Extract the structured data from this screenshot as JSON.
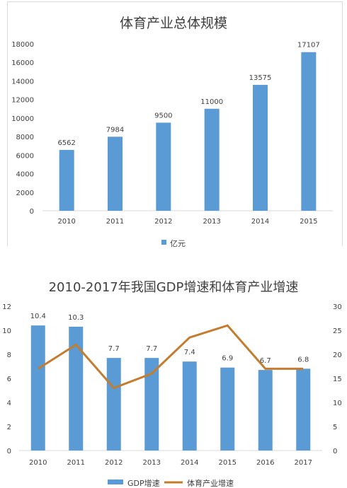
{
  "chart_data": [
    {
      "type": "bar",
      "title": "体育产业总体规模",
      "categories": [
        "2010",
        "2011",
        "2012",
        "2013",
        "2014",
        "2015"
      ],
      "series": [
        {
          "name": "亿元",
          "values": [
            6562,
            7984,
            9500,
            11000,
            13575,
            17107
          ],
          "color": "#5b9bd5"
        }
      ],
      "data_labels": [
        "6562",
        "7984",
        "9500",
        "11000",
        "13575",
        "17107"
      ],
      "y_ticks": [
        "0",
        "2000",
        "4000",
        "6000",
        "8000",
        "10000",
        "12000",
        "14000",
        "16000",
        "18000"
      ],
      "ylim": [
        0,
        18000
      ],
      "grid": false,
      "legend": "bottom"
    },
    {
      "type": "bar+line",
      "title": "2010-2017年我国GDP增速和体育产业增速",
      "categories": [
        "2010",
        "2011",
        "2012",
        "2013",
        "2014",
        "2015",
        "2016",
        "2017"
      ],
      "series": [
        {
          "name": "GDP增速",
          "type": "bar",
          "axis": "left",
          "values": [
            10.4,
            10.3,
            7.7,
            7.7,
            7.4,
            6.9,
            6.7,
            6.8
          ],
          "color": "#5b9bd5"
        },
        {
          "name": "体育产业增速",
          "type": "line",
          "axis": "right",
          "values": [
            17,
            22,
            13,
            16,
            23.5,
            26,
            17,
            17
          ],
          "color": "#c47c2e"
        }
      ],
      "data_labels": [
        "10.4",
        "10.3",
        "7.7",
        "7.7",
        "7.4",
        "6.9",
        "6.7",
        "6.8"
      ],
      "y_ticks_left": [
        "0",
        "2",
        "4",
        "6",
        "8",
        "10",
        "12"
      ],
      "y_ticks_right": [
        "0",
        "5",
        "10",
        "15",
        "20",
        "25",
        "30"
      ],
      "ylim_left": [
        0,
        12
      ],
      "ylim_right": [
        0,
        30
      ],
      "grid": false,
      "legend": "bottom"
    }
  ]
}
